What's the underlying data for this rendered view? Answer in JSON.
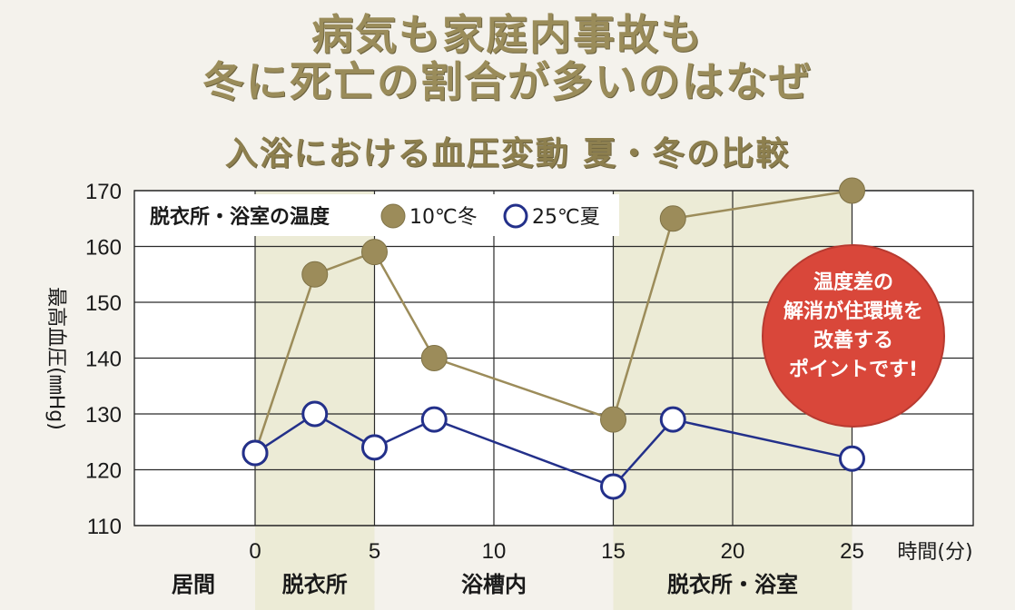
{
  "titles": {
    "line1": "病気も家庭内事故も",
    "line2": "冬に死亡の割合が多いのはなぜ",
    "line3": "入浴における血圧変動 夏・冬の比較"
  },
  "chart_data": {
    "type": "line",
    "ylabel": "最高血圧(㎜Hg)",
    "xlabel": "時間(分)",
    "ylim": [
      110,
      170
    ],
    "yticks": [
      110,
      120,
      130,
      140,
      150,
      160,
      170
    ],
    "xlim": [
      -5,
      30
    ],
    "xticks": [
      0,
      5,
      10,
      15,
      20,
      25
    ],
    "grid": true,
    "legend_title": "脱衣所・浴室の温度",
    "legend_placement": "top-left",
    "series": [
      {
        "name": "10℃冬",
        "color": "#9c8c5a",
        "marker": "filled",
        "points": [
          [
            0,
            123
          ],
          [
            2.5,
            155
          ],
          [
            5,
            159
          ],
          [
            7.5,
            140
          ],
          [
            15,
            129
          ],
          [
            17.5,
            165
          ],
          [
            25,
            170
          ]
        ]
      },
      {
        "name": "25℃夏",
        "color": "#23308a",
        "marker": "hollow",
        "points": [
          [
            0,
            123
          ],
          [
            2.5,
            130
          ],
          [
            5,
            124
          ],
          [
            7.5,
            129
          ],
          [
            15,
            117
          ],
          [
            17.5,
            129
          ],
          [
            25,
            122
          ]
        ]
      }
    ],
    "phases": [
      {
        "label": "居間",
        "start": -5,
        "end": 0,
        "shaded": false
      },
      {
        "label": "脱衣所",
        "start": 0,
        "end": 5,
        "shaded": true
      },
      {
        "label": "浴槽内",
        "start": 5,
        "end": 15,
        "shaded": false
      },
      {
        "label": "脱衣所・浴室",
        "start": 15,
        "end": 25,
        "shaded": true
      }
    ],
    "annotation": {
      "lines": [
        "温度差の",
        "解消が住環境を",
        "改善する",
        "ポイントです!"
      ],
      "color": "#d9473a"
    }
  }
}
